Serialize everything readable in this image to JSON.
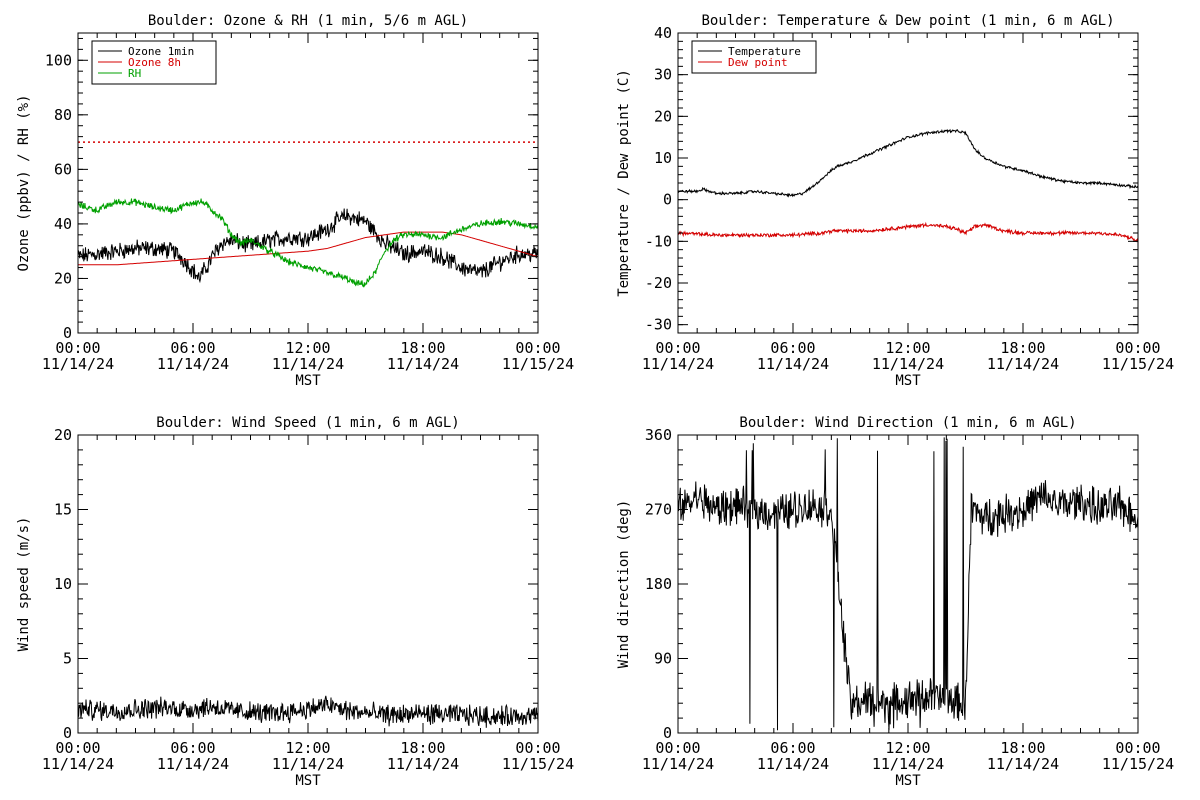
{
  "figure": {
    "x_ticks": [
      {
        "time": "00:00",
        "date": "11/14/24"
      },
      {
        "time": "06:00",
        "date": "11/14/24"
      },
      {
        "time": "12:00",
        "date": "11/14/24"
      },
      {
        "time": "18:00",
        "date": "11/14/24"
      },
      {
        "time": "00:00",
        "date": "11/15/24"
      }
    ],
    "x_unit_label": "MST"
  },
  "chart_data": [
    {
      "type": "line",
      "title": "Boulder: Ozone & RH (1 min, 5/6 m AGL)",
      "xlabel": "MST",
      "ylabel": "Ozone (ppbv) / RH (%)",
      "x_range_hours": [
        0,
        24
      ],
      "ylim": [
        0,
        110
      ],
      "yticks": [
        0,
        20,
        40,
        60,
        80,
        100
      ],
      "legend_position": "top-left",
      "reference_lines": [
        {
          "y": 70,
          "color": "#d40000",
          "style": "dotted"
        }
      ],
      "series": [
        {
          "name": "Ozone 1min",
          "color": "#000000",
          "noise": 2.5,
          "x": [
            0,
            1,
            2,
            3,
            4,
            5,
            5.5,
            6,
            6.3,
            6.7,
            7,
            7.5,
            8,
            8.5,
            9,
            10,
            11,
            12,
            13,
            13.5,
            14,
            14.5,
            15,
            15.5,
            16,
            16.5,
            17,
            18,
            19,
            20,
            21,
            22,
            23,
            24
          ],
          "y": [
            28,
            29,
            30,
            31,
            31,
            30,
            27,
            23,
            20,
            24,
            28,
            33,
            34,
            33,
            32,
            34,
            35,
            35,
            38,
            41,
            43,
            42,
            41,
            37,
            33,
            31,
            29,
            30,
            28,
            24,
            22,
            26,
            29,
            29
          ]
        },
        {
          "name": "Ozone 8h",
          "color": "#d40000",
          "noise": 0,
          "x": [
            0,
            2,
            4,
            6,
            8,
            10,
            12,
            13,
            14,
            15,
            16,
            17,
            18,
            19,
            20,
            21,
            22,
            23,
            24
          ],
          "y": [
            25,
            25,
            26,
            27,
            28,
            29,
            30,
            31,
            33,
            35,
            36,
            37,
            37,
            37,
            36,
            34,
            32,
            30,
            28
          ]
        },
        {
          "name": "RH",
          "color": "#00a000",
          "noise": 1.0,
          "x": [
            0,
            1,
            2,
            3,
            4,
            5,
            6,
            6.5,
            7,
            7.5,
            8,
            8.5,
            9,
            10,
            11,
            12,
            13,
            14,
            14.5,
            15,
            15.5,
            16,
            16.5,
            17,
            18,
            19,
            20,
            21,
            22,
            23,
            24
          ],
          "y": [
            47,
            45,
            48,
            48,
            46,
            45,
            48,
            48,
            45,
            42,
            36,
            33,
            34,
            30,
            26,
            24,
            22,
            20,
            18,
            18,
            22,
            30,
            34,
            36,
            36,
            35,
            38,
            40,
            41,
            40,
            39
          ]
        }
      ]
    },
    {
      "type": "line",
      "title": "Boulder: Temperature & Dew point (1 min, 6 m AGL)",
      "xlabel": "MST",
      "ylabel": "Temperature / Dew point (C)",
      "x_range_hours": [
        0,
        24
      ],
      "ylim": [
        -32,
        40
      ],
      "yticks": [
        -30,
        -20,
        -10,
        0,
        10,
        20,
        30,
        40
      ],
      "legend_position": "top-left",
      "series": [
        {
          "name": "Temperature",
          "color": "#000000",
          "noise": 0.25,
          "x": [
            0,
            1,
            1.3,
            2,
            3,
            4,
            5,
            6,
            6.5,
            7,
            7.5,
            8,
            8.3,
            9,
            10,
            11,
            12,
            13,
            14,
            14.5,
            15,
            15.5,
            16,
            17,
            18,
            19,
            20,
            21,
            22,
            23,
            24
          ],
          "y": [
            2,
            2,
            2.5,
            1.5,
            1.5,
            2,
            1.5,
            1,
            1.5,
            3,
            5,
            7,
            8,
            9,
            11,
            13,
            15,
            16,
            16.5,
            16.5,
            16,
            12,
            10,
            8,
            7,
            5.5,
            4.5,
            4,
            4,
            3.5,
            3
          ]
        },
        {
          "name": "Dew point",
          "color": "#d40000",
          "noise": 0.35,
          "x": [
            0,
            2,
            4,
            6,
            7.5,
            8,
            9,
            10,
            11,
            12,
            13,
            14,
            14.5,
            15,
            15.5,
            16,
            17,
            18,
            19,
            20,
            21,
            22,
            23,
            23.5,
            24
          ],
          "y": [
            -8,
            -8.5,
            -8.5,
            -8.5,
            -8,
            -7.5,
            -7.5,
            -7.5,
            -7,
            -6.5,
            -6,
            -6.5,
            -7,
            -8,
            -6.5,
            -6,
            -7.5,
            -8,
            -8,
            -8,
            -8,
            -8,
            -8.5,
            -9,
            -10
          ]
        }
      ]
    },
    {
      "type": "line",
      "title": "Boulder: Wind Speed (1 min, 6 m AGL)",
      "xlabel": "MST",
      "ylabel": "Wind speed (m/s)",
      "x_range_hours": [
        0,
        24
      ],
      "ylim": [
        0,
        20
      ],
      "yticks": [
        0,
        5,
        10,
        15,
        20
      ],
      "series": [
        {
          "name": "",
          "color": "#000000",
          "noise": 0.55,
          "min": 0,
          "x": [
            0,
            2,
            4,
            6,
            7,
            8,
            10,
            12,
            13,
            14,
            16,
            18,
            20,
            22,
            24
          ],
          "y": [
            1.6,
            1.5,
            1.7,
            1.6,
            1.8,
            1.5,
            1.3,
            1.6,
            1.9,
            1.5,
            1.2,
            1.3,
            1.2,
            1.1,
            1.2
          ]
        }
      ]
    },
    {
      "type": "line",
      "title": "Boulder: Wind Direction (1 min, 6 m AGL)",
      "xlabel": "MST",
      "ylabel": "Wind direction (deg)",
      "x_range_hours": [
        0,
        24
      ],
      "ylim": [
        0,
        360
      ],
      "yticks": [
        0,
        90,
        180,
        270,
        360
      ],
      "series": [
        {
          "name": "",
          "color": "#000000",
          "noise": 18,
          "min": 0,
          "max": 360,
          "x": [
            0,
            1,
            2,
            3,
            4,
            5,
            6,
            7,
            8,
            8.5,
            9,
            10,
            11,
            12,
            13,
            14,
            15,
            15.3,
            16,
            17,
            18,
            19,
            20,
            21,
            22,
            23,
            24
          ],
          "y": [
            270,
            285,
            270,
            275,
            270,
            265,
            270,
            275,
            270,
            150,
            35,
            40,
            35,
            40,
            45,
            40,
            35,
            270,
            260,
            265,
            270,
            285,
            275,
            280,
            270,
            275,
            260
          ]
        }
      ]
    }
  ]
}
